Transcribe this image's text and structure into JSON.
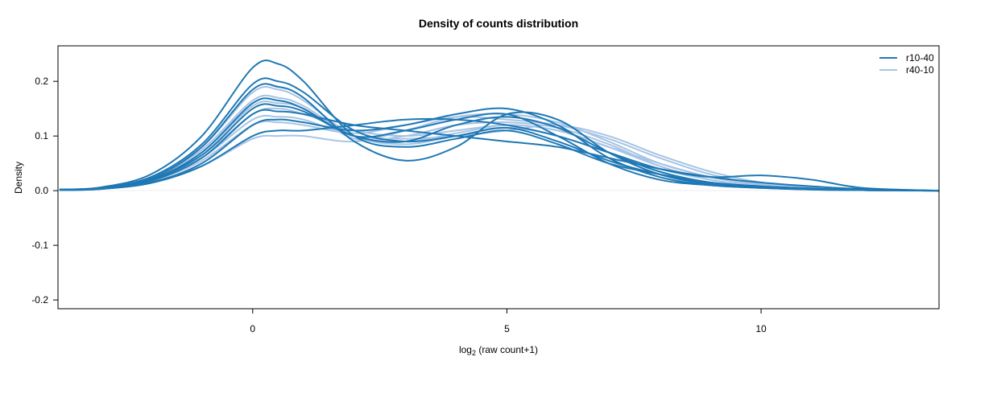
{
  "chart_data": {
    "type": "line",
    "title": "Density of counts distribution",
    "xlabel_main": "log",
    "xlabel_sub": "2",
    "xlabel_rest": " (raw count+1)",
    "ylabel": "Density",
    "xlim": [
      -3.83,
      13.5
    ],
    "ylim": [
      -0.216,
      0.265
    ],
    "xticks": [
      0,
      5,
      10
    ],
    "yticks": [
      -0.2,
      -0.1,
      0.0,
      0.1,
      0.2
    ],
    "ytick_labels": [
      "-0.2",
      "-0.1",
      "0.0",
      "0.1",
      "0.2"
    ],
    "grid": false,
    "legend_position": "top-right",
    "legend": [
      {
        "name": "r10-40",
        "color": "#1f78b4"
      },
      {
        "name": "r40-10",
        "color": "#a6c4e5"
      }
    ],
    "x": [
      -3.8,
      -3,
      -2,
      -1,
      0,
      0.5,
      1,
      2,
      3,
      4,
      5,
      6,
      7,
      8,
      9,
      10,
      11,
      12,
      13.5
    ],
    "series": [
      {
        "group": "r10-40",
        "values": [
          0.002,
          0.006,
          0.03,
          0.1,
          0.225,
          0.232,
          0.2,
          0.1,
          0.08,
          0.095,
          0.11,
          0.085,
          0.05,
          0.03,
          0.015,
          0.008,
          0.004,
          0.001,
          0
        ]
      },
      {
        "group": "r10-40",
        "values": [
          0.002,
          0.005,
          0.025,
          0.085,
          0.195,
          0.2,
          0.18,
          0.11,
          0.09,
          0.1,
          0.115,
          0.09,
          0.055,
          0.03,
          0.015,
          0.008,
          0.004,
          0.001,
          0
        ]
      },
      {
        "group": "r10-40",
        "values": [
          0.001,
          0.004,
          0.02,
          0.07,
          0.16,
          0.165,
          0.15,
          0.1,
          0.11,
          0.13,
          0.14,
          0.1,
          0.05,
          0.02,
          0.01,
          0.005,
          0.002,
          0.001,
          0
        ]
      },
      {
        "group": "r10-40",
        "values": [
          0.001,
          0.003,
          0.015,
          0.05,
          0.12,
          0.13,
          0.125,
          0.11,
          0.12,
          0.14,
          0.15,
          0.12,
          0.06,
          0.025,
          0.01,
          0.005,
          0.002,
          0.001,
          0
        ]
      },
      {
        "group": "r10-40",
        "values": [
          0.001,
          0.003,
          0.014,
          0.045,
          0.1,
          0.11,
          0.11,
          0.12,
          0.13,
          0.13,
          0.12,
          0.1,
          0.07,
          0.04,
          0.025,
          0.028,
          0.02,
          0.005,
          0
        ]
      },
      {
        "group": "r10-40",
        "values": [
          0.002,
          0.005,
          0.022,
          0.08,
          0.185,
          0.19,
          0.17,
          0.09,
          0.055,
          0.08,
          0.14,
          0.13,
          0.07,
          0.03,
          0.012,
          0.006,
          0.003,
          0.001,
          0
        ]
      },
      {
        "group": "r10-40",
        "values": [
          0.001,
          0.004,
          0.018,
          0.06,
          0.14,
          0.145,
          0.14,
          0.12,
          0.11,
          0.1,
          0.09,
          0.08,
          0.06,
          0.04,
          0.025,
          0.015,
          0.008,
          0.003,
          0
        ]
      },
      {
        "group": "r10-40",
        "values": [
          0.001,
          0.004,
          0.02,
          0.065,
          0.15,
          0.155,
          0.145,
          0.1,
          0.09,
          0.12,
          0.135,
          0.115,
          0.07,
          0.035,
          0.015,
          0.007,
          0.003,
          0.001,
          0
        ]
      },
      {
        "group": "r40-10",
        "values": [
          0.001,
          0.004,
          0.02,
          0.065,
          0.14,
          0.15,
          0.14,
          0.11,
          0.1,
          0.11,
          0.12,
          0.11,
          0.08,
          0.05,
          0.025,
          0.012,
          0.005,
          0.001,
          0
        ]
      },
      {
        "group": "r40-10",
        "values": [
          0.001,
          0.003,
          0.015,
          0.045,
          0.095,
          0.1,
          0.1,
          0.09,
          0.11,
          0.135,
          0.14,
          0.125,
          0.09,
          0.05,
          0.025,
          0.01,
          0.004,
          0.001,
          0
        ]
      },
      {
        "group": "r40-10",
        "values": [
          0.002,
          0.005,
          0.025,
          0.08,
          0.18,
          0.185,
          0.165,
          0.1,
          0.085,
          0.1,
          0.115,
          0.1,
          0.07,
          0.04,
          0.02,
          0.008,
          0.003,
          0.001,
          0
        ]
      },
      {
        "group": "r40-10",
        "values": [
          0.001,
          0.004,
          0.02,
          0.07,
          0.155,
          0.16,
          0.15,
          0.095,
          0.1,
          0.12,
          0.125,
          0.115,
          0.085,
          0.045,
          0.02,
          0.008,
          0.003,
          0.001,
          0
        ]
      },
      {
        "group": "r40-10",
        "values": [
          0.001,
          0.003,
          0.017,
          0.055,
          0.12,
          0.125,
          0.12,
          0.105,
          0.12,
          0.135,
          0.13,
          0.12,
          0.095,
          0.06,
          0.03,
          0.012,
          0.005,
          0.001,
          0
        ]
      },
      {
        "group": "r40-10",
        "values": [
          0.001,
          0.004,
          0.02,
          0.06,
          0.13,
          0.135,
          0.13,
          0.1,
          0.095,
          0.1,
          0.11,
          0.12,
          0.1,
          0.065,
          0.035,
          0.015,
          0.006,
          0.001,
          0
        ]
      },
      {
        "group": "r40-10",
        "values": [
          0.001,
          0.004,
          0.022,
          0.075,
          0.165,
          0.17,
          0.155,
          0.1,
          0.09,
          0.105,
          0.12,
          0.11,
          0.08,
          0.045,
          0.02,
          0.008,
          0.003,
          0.001,
          0
        ]
      }
    ]
  }
}
